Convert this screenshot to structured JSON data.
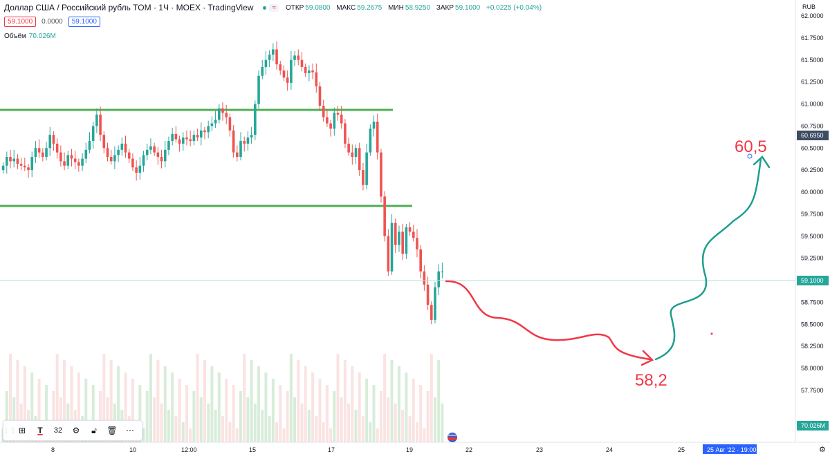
{
  "header": {
    "title": "Доллар США / Российский рубль TOM · 1Ч · MOEX · TradingView",
    "badge": "≈",
    "ohlc": [
      {
        "label": "ОТКР",
        "value": "59.0800"
      },
      {
        "label": "МАКС",
        "value": "59.2675"
      },
      {
        "label": "МИН",
        "value": "58.9250"
      },
      {
        "label": "ЗАКР",
        "value": "59.1000"
      }
    ],
    "change": "+0.0225 (+0.04%)"
  },
  "quote": {
    "sell": "59.1000",
    "spread": "0.0000",
    "buy": "59.1000"
  },
  "volume_legend": {
    "label": "Объём",
    "value": "70.026M"
  },
  "currency": "RUB",
  "toolbar": {
    "font_size": "32"
  },
  "date_badge": "25 Авг '22 · 19:00",
  "annotations": {
    "target_high": "60,5",
    "target_low": "58,2"
  },
  "colors": {
    "up": "#26a69a",
    "down": "#ef5350",
    "level": "#4caf50",
    "arrow_up": "#1e9e8c",
    "arrow_down": "#f23645"
  },
  "chart_data": {
    "type": "candlestick",
    "title": "Доллар США / Российский рубль TOM",
    "timeframe": "1Ч",
    "ylim": [
      57.6,
      62.0
    ],
    "y_ticks": [
      "62.0000",
      "61.7500",
      "61.5000",
      "61.2500",
      "61.0000",
      "60.7500",
      "60.5000",
      "60.2500",
      "60.0000",
      "59.7500",
      "59.5000",
      "59.2500",
      "59.0000",
      "58.7500",
      "58.5000",
      "58.2500",
      "58.0000",
      "57.7500"
    ],
    "x_ticks": [
      "8",
      "10",
      "12:00",
      "15",
      "17",
      "19",
      "22",
      "23",
      "24",
      "25"
    ],
    "price_labels": {
      "last": "59.1000",
      "cursor": "60.6950",
      "volume": "70.026M"
    },
    "levels": [
      60.97,
      59.92
    ],
    "candles_close": [
      60.3,
      60.4,
      60.35,
      60.38,
      60.32,
      60.3,
      60.28,
      60.25,
      60.4,
      60.5,
      60.45,
      60.4,
      60.5,
      60.65,
      60.55,
      60.45,
      60.35,
      60.3,
      60.42,
      60.38,
      60.34,
      60.3,
      60.38,
      60.48,
      60.58,
      60.75,
      60.88,
      60.65,
      60.5,
      60.4,
      60.35,
      60.42,
      60.48,
      60.55,
      60.45,
      60.38,
      60.28,
      60.22,
      60.3,
      60.42,
      60.48,
      60.52,
      60.45,
      60.4,
      60.35,
      60.48,
      60.58,
      60.66,
      60.6,
      60.55,
      60.62,
      60.6,
      60.58,
      60.65,
      60.62,
      60.7,
      60.68,
      60.75,
      60.78,
      60.82,
      60.95,
      60.9,
      60.85,
      60.7,
      60.45,
      60.4,
      60.58,
      60.55,
      60.62,
      60.65,
      61.0,
      61.32,
      61.42,
      61.5,
      61.56,
      61.62,
      61.45,
      61.38,
      61.3,
      61.24,
      61.5,
      61.55,
      61.5,
      61.42,
      61.35,
      61.38,
      61.36,
      61.2,
      60.98,
      60.85,
      60.78,
      60.72,
      60.9,
      60.88,
      60.78,
      60.55,
      60.45,
      60.4,
      60.5,
      60.25,
      60.08,
      60.45,
      60.72,
      60.8,
      60.45,
      59.95,
      59.5,
      59.1,
      59.65,
      59.4,
      59.55,
      59.3,
      59.6,
      59.55,
      59.48,
      59.35,
      59.1,
      58.95,
      58.72,
      58.55,
      58.92,
      59.1,
      59.1
    ]
  }
}
